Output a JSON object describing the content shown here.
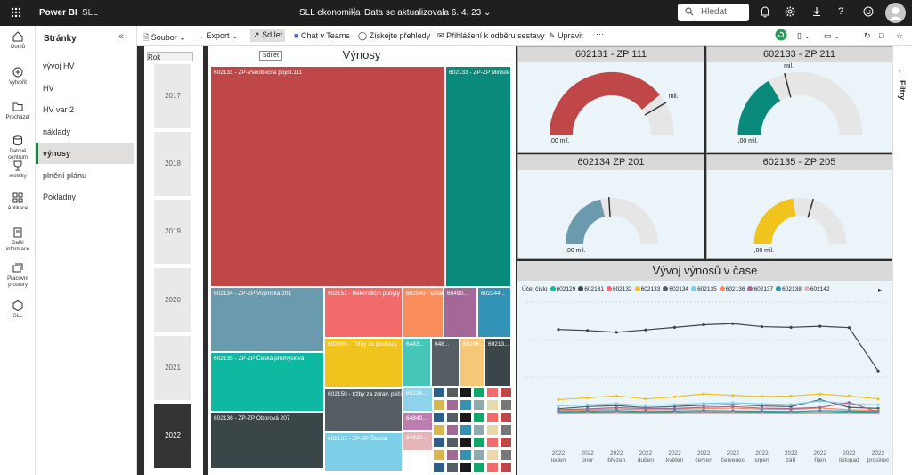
{
  "topbar": {
    "brand": "Power BI",
    "workspace": "SLL",
    "title": "SLL ekonomika",
    "separator": "|",
    "refresh": "Data se aktualizovala 6. 4. 23",
    "search_placeholder": "Hledat"
  },
  "rail": [
    {
      "label": "Domů",
      "icon": "home-icon"
    },
    {
      "label": "Vytvořit",
      "icon": "create-icon"
    },
    {
      "label": "Procházet",
      "icon": "browse-icon"
    },
    {
      "label": "Datové centrum",
      "icon": "data-hub-icon"
    },
    {
      "label": "metriky",
      "icon": "metrics-icon"
    },
    {
      "label": "Aplikace",
      "icon": "apps-icon"
    },
    {
      "label": "Další informace",
      "icon": "learn-icon"
    },
    {
      "label": "Pracovní prostory",
      "icon": "workspaces-icon"
    },
    {
      "label": "SLL",
      "icon": "workspace-sll-icon"
    }
  ],
  "pages": {
    "header": "Stránky",
    "items": [
      "vývoj HV",
      "HV",
      "HV var 2",
      "náklady",
      "výnosy",
      "plnění plánu",
      "Pokladny"
    ],
    "active_index": 4
  },
  "toolbar": {
    "file": "Soubor",
    "export": "Export",
    "share": "Sdílet",
    "teams": "Chat v Teams",
    "insights": "Získejte přehledy",
    "subscribe": "Přihlášení k odběru sestavy",
    "edit": "Upravit",
    "more": "···"
  },
  "filters": {
    "label": "Filtry"
  },
  "slicer": {
    "header": "Rok",
    "years": [
      "2017",
      "2018",
      "2019",
      "2020",
      "2021",
      "2022"
    ],
    "selected": "2022"
  },
  "treemap": {
    "title": "Výnosy",
    "share_button": "Sdílet",
    "tiles": [
      {
        "label": "602131 - ZP-Vseobecna pojist.111",
        "color": "#bf4747"
      },
      {
        "label": "602133 - ZP-ZP Ministerstva",
        "color": "#0a8a7a"
      },
      {
        "label": "602134 - ZP-ZP Vojenská 201",
        "color": "#6b99ae"
      },
      {
        "label": "602135 - ZP-ZP Česká průmyslová",
        "color": "#0fb8a0"
      },
      {
        "label": "602136 - ZP-ZP Oborová 207",
        "color": "#3b4649"
      },
      {
        "label": "602151 - Rekondiční pobyty",
        "color": "#f36a6a"
      },
      {
        "label": "602469 - Tržby za poukazy",
        "color": "#f0c31d"
      },
      {
        "label": "602150 - tržby za zdrav. péči",
        "color": "#555f63"
      },
      {
        "label": "602137 - ZP-ZP Škoda",
        "color": "#7dcfe8"
      },
      {
        "label": "602540 - ostatní",
        "color": "#fb8c5c"
      },
      {
        "label": "60490...",
        "color": "#a36798"
      },
      {
        "label": "602244...",
        "color": "#3293b6"
      },
      {
        "label": "6483...",
        "color": "#46c6b6"
      },
      {
        "label": "648...",
        "color": "#555f63"
      },
      {
        "label": "60246...",
        "color": "#f5c776"
      },
      {
        "label": "60213...",
        "color": "#3b4649"
      },
      {
        "label": "60214...",
        "color": "#8fd2ec"
      },
      {
        "label": "64840...",
        "color": "#bc7eb0"
      },
      {
        "label": "64810...",
        "color": "#e5b5b8"
      }
    ],
    "small_colors": [
      "#2c5e8c",
      "#555f63",
      "#1a1a1a",
      "#0fa86a",
      "#f36a6a",
      "#bf4747",
      "#d8b64a",
      "#a36798",
      "#3293b6",
      "#8ea8ad",
      "#e8d9a8",
      "#777"
    ]
  },
  "gauges": [
    {
      "title": "602131 - ZP 111",
      "min": ",00 mil.",
      "max": "",
      "value": "",
      "target": "",
      "target_unit": "mil.",
      "fill_fraction": 0.78,
      "target_fraction": 0.83,
      "color": "#bf4747"
    },
    {
      "title": "602133 - ZP 211",
      "min": ",00 mil.",
      "max": "",
      "value": "",
      "target": "",
      "target_unit": "mil.",
      "fill_fraction": 0.33,
      "target_fraction": 0.42,
      "color": "#0a8a7a"
    },
    {
      "title": "602134 ZP 201",
      "min": ",00 mil.",
      "max": "",
      "value": "",
      "target": "",
      "target_unit": "",
      "fill_fraction": 0.42,
      "target_fraction": 0.48,
      "color": "#6b99ae"
    },
    {
      "title": "602135 - ZP 205",
      "min": ",00 mil.",
      "max": "",
      "value": "",
      "target": "",
      "target_unit": "",
      "fill_fraction": 0.45,
      "target_fraction": 0.59,
      "color": "#f0c31d"
    }
  ],
  "chart_data": {
    "type": "line",
    "title": "Vývoj výnosů v čase",
    "legend_title": "Účet číslo",
    "legend_position": "top-left",
    "grid": true,
    "x": [
      "2022 leden",
      "2022 únor",
      "2022 březen",
      "2022 duben",
      "2022 květen",
      "2022 červen",
      "2022 červenec",
      "2022 srpen",
      "2022 září",
      "2022 říjen",
      "2022 listopad",
      "2022 prosinec"
    ],
    "series": [
      {
        "name": "602129",
        "color": "#0fb8a0",
        "values": [
          1.2,
          1.5,
          1.8,
          1.4,
          1.6,
          1.7,
          1.5,
          1.6,
          1.4,
          1.3,
          1.6,
          1.5
        ]
      },
      {
        "name": "602131",
        "color": "#3b4649",
        "values": [
          60.5,
          59.8,
          58.5,
          60.2,
          62.0,
          63.8,
          64.6,
          62.5,
          62.0,
          62.8,
          61.8,
          31.0
        ]
      },
      {
        "name": "602132",
        "color": "#f36a6a",
        "values": [
          0.8,
          1.0,
          1.3,
          0.9,
          1.1,
          1.4,
          1.2,
          1.0,
          0.8,
          1.1,
          0.9,
          1.0
        ]
      },
      {
        "name": "602133",
        "color": "#f0c31d",
        "values": [
          10.5,
          11.8,
          13.2,
          11.0,
          12.5,
          14.5,
          13.5,
          12.8,
          13.0,
          14.5,
          13.0,
          11.0
        ]
      },
      {
        "name": "602134",
        "color": "#555f63",
        "values": [
          4.0,
          5.5,
          6.2,
          4.8,
          5.6,
          6.5,
          7.0,
          6.0,
          5.5,
          10.5,
          5.0,
          4.2
        ]
      },
      {
        "name": "602135",
        "color": "#7dcfe8",
        "values": [
          6.0,
          6.8,
          7.6,
          6.3,
          7.0,
          7.8,
          8.2,
          7.5,
          7.0,
          9.5,
          7.5,
          6.8
        ]
      },
      {
        "name": "602136",
        "color": "#fb8c5c",
        "values": [
          2.5,
          3.0,
          3.8,
          3.1,
          3.5,
          4.0,
          4.4,
          3.7,
          3.4,
          4.5,
          3.2,
          2.8
        ]
      },
      {
        "name": "602137",
        "color": "#a36798",
        "values": [
          3.2,
          3.8,
          4.8,
          4.0,
          4.2,
          5.0,
          5.5,
          4.4,
          4.1,
          4.9,
          8.5,
          1.6
        ]
      },
      {
        "name": "602138",
        "color": "#3293b6",
        "values": [
          1.8,
          2.2,
          2.6,
          2.0,
          2.3,
          2.7,
          2.4,
          2.2,
          2.0,
          2.6,
          2.3,
          2.0
        ]
      },
      {
        "name": "602142",
        "color": "#e5b5b8",
        "values": [
          0.5,
          0.7,
          0.9,
          0.6,
          0.8,
          1.0,
          0.9,
          0.7,
          0.6,
          0.8,
          0.7,
          0.6
        ]
      }
    ],
    "ylim": [
      0,
      80
    ]
  }
}
